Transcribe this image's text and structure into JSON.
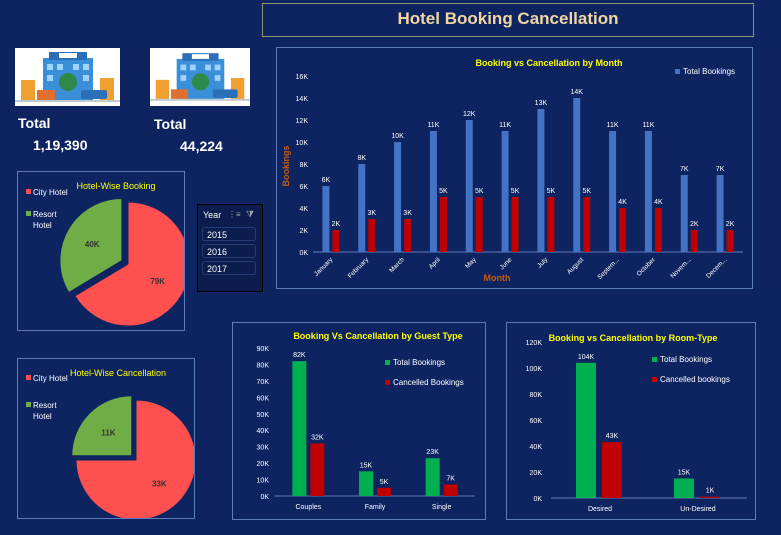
{
  "header": {
    "title": "Hotel Booking Cancellation"
  },
  "kpis": [
    {
      "label": "Total",
      "value": "1,19,390"
    },
    {
      "label": "Total",
      "value": "44,224"
    }
  ],
  "slicer": {
    "header": "Year",
    "items": [
      "2015",
      "2016",
      "2017"
    ]
  },
  "colors": {
    "background": "#0d2460",
    "blue_series": "#4472c4",
    "red_series": "#c00000",
    "green_series": "#00b050",
    "city": "#ff5050",
    "resort": "#70ad47",
    "title_yellow": "#ffff00",
    "month_label": "#c55a11"
  },
  "chart_data": [
    {
      "type": "pie",
      "title": "Hotel-Wise Booking",
      "categories": [
        "City Hotel",
        "Resort Hotel"
      ],
      "values": [
        79,
        40
      ],
      "data_labels": [
        "79K",
        "40K"
      ]
    },
    {
      "type": "pie",
      "title": "Hotel-Wise Cancellation",
      "categories": [
        "City Hotel",
        "Resort Hotel"
      ],
      "values": [
        33,
        11
      ],
      "data_labels": [
        "33K",
        "11K"
      ]
    },
    {
      "type": "bar",
      "title": "Booking vs Cancellation by Month",
      "xlabel": "Month",
      "ylabel": "Bookings",
      "ylim": [
        0,
        16
      ],
      "yticks": [
        "0K",
        "2K",
        "4K",
        "6K",
        "8K",
        "10K",
        "12K",
        "14K",
        "16K"
      ],
      "categories": [
        "January",
        "February",
        "March",
        "April",
        "May",
        "June",
        "July",
        "August",
        "Septem...",
        "October",
        "Novem...",
        "Decem..."
      ],
      "series": [
        {
          "name": "Total Bookings",
          "values": [
            6,
            8,
            10,
            11,
            12,
            11,
            13,
            14,
            11,
            11,
            7,
            7
          ],
          "labels": [
            "6K",
            "8K",
            "10K",
            "11K",
            "12K",
            "11K",
            "13K",
            "14K",
            "11K",
            "11K",
            "7K",
            "7K"
          ]
        },
        {
          "name": "",
          "values": [
            2,
            3,
            3,
            5,
            5,
            5,
            5,
            5,
            4,
            4,
            2,
            2
          ],
          "labels": [
            "2K",
            "3K",
            "3K",
            "5K",
            "5K",
            "5K",
            "5K",
            "5K",
            "4K",
            "4K",
            "2K",
            "2K"
          ]
        }
      ],
      "legend": "top-right"
    },
    {
      "type": "bar",
      "title": "Booking Vs Cancellation by Guest Type",
      "ylim": [
        0,
        90
      ],
      "yticks": [
        "0K",
        "10K",
        "20K",
        "30K",
        "40K",
        "50K",
        "60K",
        "70K",
        "80K",
        "90K"
      ],
      "categories": [
        "Couples",
        "Family",
        "Single"
      ],
      "series": [
        {
          "name": "Total Bookings",
          "values": [
            82,
            15,
            23
          ],
          "labels": [
            "82K",
            "15K",
            "23K"
          ]
        },
        {
          "name": "Cancelled Bookings",
          "values": [
            32,
            5,
            7
          ],
          "labels": [
            "32K",
            "5K",
            "7K"
          ]
        }
      ],
      "legend": "top-right"
    },
    {
      "type": "bar",
      "title": "Booking vs Cancellation by Room-Type",
      "ylim": [
        0,
        120
      ],
      "yticks": [
        "0K",
        "20K",
        "40K",
        "60K",
        "80K",
        "100K",
        "120K"
      ],
      "categories": [
        "Desired",
        "Un-Desired"
      ],
      "series": [
        {
          "name": "Total Bookings",
          "values": [
            104,
            15
          ],
          "labels": [
            "104K",
            "15K"
          ]
        },
        {
          "name": "Cancelled bookings",
          "values": [
            43,
            1
          ],
          "labels": [
            "43K",
            "1K"
          ]
        }
      ],
      "legend": "top-right"
    }
  ]
}
